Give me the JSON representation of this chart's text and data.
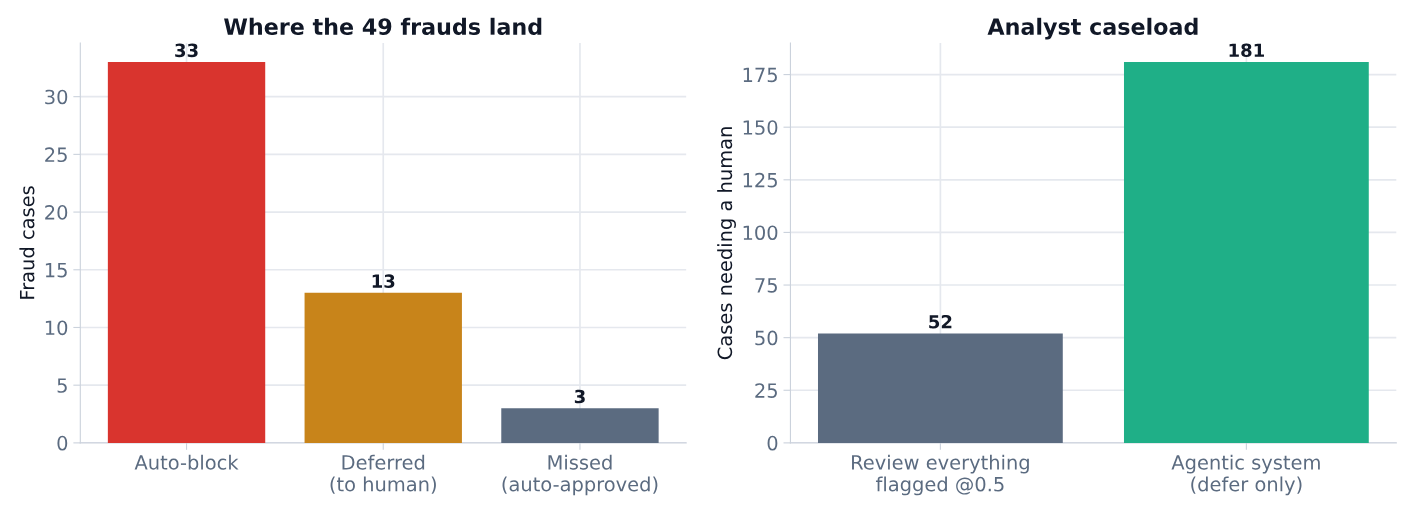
{
  "chart_data": [
    {
      "type": "bar",
      "title": "Where the 49 frauds land",
      "ylabel": "Fraud cases",
      "categories": [
        "Auto-block",
        "Deferred\n(to human)",
        "Missed\n(auto-approved)"
      ],
      "values": [
        33,
        13,
        3
      ],
      "colors": [
        "#d9342e",
        "#c8841a",
        "#5b6b80"
      ],
      "ylim": [
        0,
        34.65
      ],
      "yticks": [
        0,
        5,
        10,
        15,
        20,
        25,
        30
      ],
      "grid": true,
      "data_labels": true
    },
    {
      "type": "bar",
      "title": "Analyst caseload",
      "ylabel": "Cases needing a human",
      "categories": [
        "Review everything\nflagged @0.5",
        "Agentic system\n(defer only)"
      ],
      "values": [
        52,
        181
      ],
      "colors": [
        "#5b6b80",
        "#1faf87"
      ],
      "ylim": [
        0,
        190
      ],
      "yticks": [
        0,
        25,
        50,
        75,
        100,
        125,
        150,
        175
      ],
      "grid": true,
      "data_labels": true
    }
  ]
}
